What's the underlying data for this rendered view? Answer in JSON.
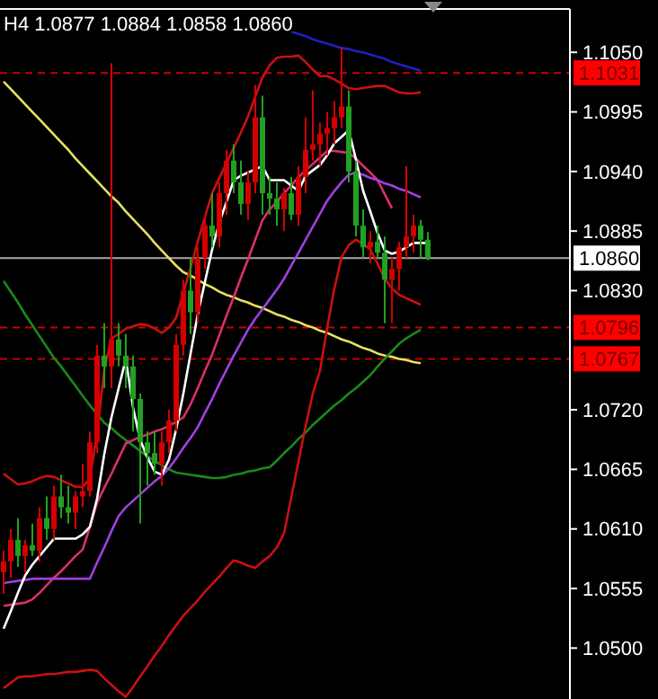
{
  "chart_data": {
    "type": "candlestick",
    "title": "H4 1.0877 1.0884 1.0858 1.0860",
    "categories": [
      null,
      null,
      null,
      null,
      null,
      null,
      null,
      null,
      null,
      null,
      null,
      null,
      null,
      null,
      null,
      null,
      null,
      null,
      null,
      null,
      null,
      null,
      null,
      null,
      null,
      null,
      null,
      null,
      null,
      null,
      null,
      null,
      null,
      null,
      null,
      null,
      null,
      null,
      null,
      null,
      null,
      null,
      null,
      null,
      null,
      null,
      null,
      null,
      null,
      null,
      null,
      null,
      null,
      null,
      null,
      null,
      null,
      null,
      null,
      null
    ],
    "ohlc": [
      [
        1.057,
        1.059,
        1.055,
        1.058
      ],
      [
        1.058,
        1.061,
        1.0565,
        1.06
      ],
      [
        1.06,
        1.062,
        1.0575,
        1.0585
      ],
      [
        1.0585,
        1.06,
        1.057,
        1.0595
      ],
      [
        1.0595,
        1.0615,
        1.0585,
        1.059
      ],
      [
        1.059,
        1.063,
        1.058,
        1.062
      ],
      [
        1.062,
        1.064,
        1.06,
        1.061
      ],
      [
        1.061,
        1.065,
        1.06,
        1.064
      ],
      [
        1.064,
        1.066,
        1.062,
        1.063
      ],
      [
        1.063,
        1.065,
        1.0615,
        1.0625
      ],
      [
        1.0625,
        1.0645,
        1.061,
        1.064
      ],
      [
        1.064,
        1.067,
        1.063,
        1.0645
      ],
      [
        1.0645,
        1.07,
        1.064,
        1.069
      ],
      [
        1.069,
        1.078,
        1.068,
        1.077
      ],
      [
        1.077,
        1.08,
        1.074,
        1.076
      ],
      [
        1.076,
        1.104,
        1.074,
        1.0785
      ],
      [
        1.0785,
        1.08,
        1.076,
        1.077
      ],
      [
        1.077,
        1.079,
        1.074,
        1.076
      ],
      [
        1.076,
        1.077,
        1.07,
        1.073
      ],
      [
        1.073,
        1.0735,
        1.0615,
        1.069
      ],
      [
        1.069,
        1.07,
        1.065,
        1.068
      ],
      [
        1.068,
        1.07,
        1.066,
        1.067
      ],
      [
        1.067,
        1.07,
        1.065,
        1.069
      ],
      [
        1.069,
        1.072,
        1.068,
        1.071
      ],
      [
        1.071,
        1.079,
        1.07,
        1.078
      ],
      [
        1.078,
        1.084,
        1.077,
        1.083
      ],
      [
        1.083,
        1.086,
        1.079,
        1.081
      ],
      [
        1.081,
        1.087,
        1.08,
        1.086
      ],
      [
        1.086,
        1.09,
        1.085,
        1.089
      ],
      [
        1.089,
        1.092,
        1.087,
        1.088
      ],
      [
        1.088,
        1.093,
        1.087,
        1.092
      ],
      [
        1.092,
        1.096,
        1.09,
        1.095
      ],
      [
        1.095,
        1.0965,
        1.092,
        1.093
      ],
      [
        1.093,
        1.095,
        1.09,
        1.091
      ],
      [
        1.091,
        1.094,
        1.0895,
        1.093
      ],
      [
        1.093,
        1.102,
        1.092,
        1.099
      ],
      [
        1.099,
        1.101,
        1.09,
        1.092
      ],
      [
        1.092,
        1.0935,
        1.09,
        1.0915
      ],
      [
        1.0915,
        1.093,
        1.089,
        1.0905
      ],
      [
        1.0905,
        1.0925,
        1.0885,
        1.092
      ],
      [
        1.092,
        1.0935,
        1.0895,
        1.09
      ],
      [
        1.09,
        1.0945,
        1.089,
        1.0935
      ],
      [
        1.0935,
        1.099,
        1.092,
        1.096
      ],
      [
        1.096,
        1.1015,
        1.095,
        1.0965
      ],
      [
        1.0965,
        1.0985,
        1.0945,
        1.0975
      ],
      [
        1.0975,
        1.0995,
        1.0955,
        1.098
      ],
      [
        1.098,
        1.1005,
        1.0965,
        1.099
      ],
      [
        1.099,
        1.1055,
        1.098,
        1.1
      ],
      [
        1.1,
        1.1015,
        1.093,
        1.094
      ],
      [
        1.094,
        1.095,
        1.088,
        1.089
      ],
      [
        1.089,
        1.0905,
        1.086,
        1.087
      ],
      [
        1.087,
        1.0885,
        1.0855,
        1.0875
      ],
      [
        1.0875,
        1.089,
        1.086,
        1.0865
      ],
      [
        1.0865,
        1.088,
        1.08,
        1.084
      ],
      [
        1.084,
        1.086,
        1.08,
        1.085
      ],
      [
        1.085,
        1.0875,
        1.083,
        1.087
      ],
      [
        1.087,
        1.0945,
        1.086,
        1.088
      ],
      [
        1.088,
        1.09,
        1.0865,
        1.089
      ],
      [
        1.089,
        1.0895,
        1.086,
        1.0877
      ],
      [
        1.0877,
        1.0884,
        1.0858,
        1.086
      ]
    ],
    "colors": [
      "#d40000",
      "#d40000",
      "#22a022",
      "#d40000",
      "#22a022",
      "#d40000",
      "#22a022",
      "#d40000",
      "#22a022",
      "#22a022",
      "#d40000",
      "#d40000",
      "#d40000",
      "#d40000",
      "#22a022",
      "#d40000",
      "#22a022",
      "#22a022",
      "#22a022",
      "#22a022",
      "#22a022",
      "#22a022",
      "#d40000",
      "#d40000",
      "#d40000",
      "#d40000",
      "#22a022",
      "#d40000",
      "#d40000",
      "#22a022",
      "#d40000",
      "#d40000",
      "#22a022",
      "#22a022",
      "#d40000",
      "#d40000",
      "#22a022",
      "#22a022",
      "#22a022",
      "#d40000",
      "#22a022",
      "#d40000",
      "#d40000",
      "#d40000",
      "#d40000",
      "#d40000",
      "#d40000",
      "#d40000",
      "#22a022",
      "#22a022",
      "#22a022",
      "#d40000",
      "#22a022",
      "#22a022",
      "#d40000",
      "#d40000",
      "#d40000",
      "#d40000",
      "#22a022",
      "#22a022"
    ],
    "series": [
      {
        "type": "line",
        "color": "#e8e060",
        "values": [
          1.1023,
          1.1016,
          1.1009,
          1.1002,
          1.0995,
          1.0988,
          1.0981,
          1.0974,
          1.0967,
          1.096,
          1.0952,
          1.0945,
          1.0938,
          1.0931,
          1.0924,
          1.0917,
          1.0911,
          1.0903,
          1.0896,
          1.0889,
          1.0882,
          1.0874,
          1.0867,
          1.086,
          1.0853,
          1.0847,
          1.0844,
          1.084,
          1.0836,
          1.0833,
          1.0829,
          1.0826,
          1.0824,
          1.0821,
          1.0819,
          1.0816,
          1.0814,
          1.0811,
          1.0808,
          1.0806,
          1.0803,
          1.0801,
          1.0798,
          1.0796,
          1.0793,
          1.0791,
          1.0788,
          1.0785,
          1.0783,
          1.078,
          1.0777,
          1.0775,
          1.0772,
          1.077,
          1.0769,
          1.0767,
          1.0766,
          1.0764,
          1.0763,
          null
        ]
      },
      {
        "type": "line",
        "color": "#1a8a1a",
        "values": [
          1.0839,
          1.0829,
          1.0819,
          1.0808,
          1.0798,
          1.0788,
          1.0778,
          1.0768,
          1.076,
          1.0751,
          1.0742,
          1.0733,
          1.0724,
          1.0716,
          1.0708,
          1.0703,
          1.0697,
          1.0692,
          1.0687,
          1.0682,
          1.0677,
          1.0673,
          1.0669,
          1.0665,
          1.0662,
          1.0661,
          1.066,
          1.0659,
          1.0658,
          1.0657,
          1.0657,
          1.0658,
          1.066,
          1.0661,
          1.0663,
          1.0664,
          1.0666,
          1.0667,
          1.0673,
          1.068,
          1.0686,
          1.0693,
          1.0699,
          1.0706,
          1.0712,
          1.0718,
          1.0724,
          1.0729,
          1.0735,
          1.074,
          1.0746,
          1.0752,
          1.076,
          1.0767,
          1.0774,
          1.0781,
          1.0786,
          1.079,
          1.0794,
          null
        ]
      },
      {
        "type": "line",
        "color": "#2020c0",
        "values": [
          null,
          null,
          null,
          null,
          null,
          null,
          null,
          null,
          null,
          null,
          null,
          null,
          null,
          null,
          null,
          null,
          null,
          null,
          null,
          null,
          null,
          null,
          null,
          null,
          null,
          null,
          null,
          null,
          null,
          null,
          null,
          null,
          null,
          null,
          null,
          null,
          null,
          null,
          null,
          null,
          1.1069,
          1.1067,
          1.1065,
          1.1062,
          1.106,
          1.1058,
          1.1056,
          1.1054,
          1.1053,
          1.1051,
          1.105,
          1.1048,
          1.1046,
          1.1044,
          1.1041,
          1.1039,
          1.1037,
          1.1035,
          1.1033,
          null
        ]
      },
      {
        "type": "line",
        "color": "#cc1010",
        "values": [
          1.0661,
          1.0656,
          1.0651,
          1.0652,
          1.0654,
          1.0657,
          1.0659,
          1.0658,
          1.0655,
          1.0652,
          1.0649,
          1.0649,
          1.0656,
          1.0698,
          1.0757,
          1.0786,
          1.079,
          1.0795,
          1.0797,
          1.0799,
          1.0798,
          1.0795,
          1.0791,
          1.0796,
          1.0805,
          1.0828,
          1.0851,
          1.0875,
          1.0898,
          1.092,
          1.0934,
          1.0948,
          1.0962,
          1.0976,
          1.0991,
          1.1009,
          1.1027,
          1.1038,
          1.1045,
          1.1046,
          1.1046,
          1.1047,
          1.1041,
          1.1034,
          1.1028,
          1.1028,
          1.1025,
          1.1021,
          1.1017,
          1.1016,
          1.1017,
          1.1018,
          1.1019,
          1.1019,
          1.1016,
          1.1013,
          1.1012,
          1.1012,
          1.1013,
          null
        ]
      },
      {
        "type": "line",
        "color": "#cc1010",
        "values": [
          1.0463,
          1.0468,
          1.0473,
          1.0474,
          1.0474,
          1.0475,
          1.0476,
          1.0476,
          1.0477,
          1.0478,
          1.0478,
          1.0479,
          1.048,
          1.0479,
          1.0472,
          1.0466,
          1.046,
          1.0455,
          1.0464,
          1.0474,
          1.0483,
          1.0493,
          1.0502,
          1.0512,
          1.0521,
          1.053,
          1.0537,
          1.0544,
          1.0552,
          1.0559,
          1.0566,
          1.0574,
          1.0581,
          1.0579,
          1.0576,
          1.0574,
          1.058,
          1.0585,
          1.0593,
          1.0606,
          1.0639,
          1.0672,
          1.0705,
          1.0735,
          1.0756,
          1.0796,
          1.0832,
          1.0861,
          1.0872,
          1.0877,
          1.0873,
          1.0868,
          1.0855,
          1.0841,
          1.0832,
          1.0826,
          1.0823,
          1.082,
          1.0817,
          null
        ]
      },
      {
        "type": "line",
        "color": "#d8306a",
        "values": [
          1.0539,
          1.054,
          1.0541,
          1.0542,
          1.0545,
          1.0551,
          1.0558,
          1.0565,
          1.0571,
          1.0578,
          1.0585,
          1.0591,
          1.0612,
          1.0634,
          1.0648,
          1.0661,
          1.0675,
          1.0689,
          1.0692,
          1.0695,
          1.0697,
          1.07,
          1.0702,
          1.0705,
          1.0709,
          1.0713,
          1.0725,
          1.074,
          1.0756,
          1.0771,
          1.0789,
          1.0807,
          1.0824,
          1.0842,
          1.0859,
          1.0877,
          1.0895,
          1.0905,
          1.0912,
          1.092,
          1.0927,
          1.0935,
          1.0941,
          1.0947,
          1.0953,
          1.0959,
          1.0959,
          1.0958,
          1.0957,
          1.0952,
          1.0945,
          1.0939,
          1.0932,
          1.0919,
          1.0906,
          null,
          null,
          null,
          null,
          null
        ]
      },
      {
        "type": "line",
        "color": "#a040e0",
        "values": [
          1.056,
          1.0561,
          1.0562,
          1.0563,
          1.0564,
          1.0564,
          1.0564,
          1.0564,
          1.0564,
          1.0564,
          1.0564,
          1.0564,
          1.0564,
          1.0579,
          1.0593,
          1.0608,
          1.0622,
          1.063,
          1.0636,
          1.0642,
          1.0648,
          1.0654,
          1.0659,
          1.0666,
          1.0675,
          1.0685,
          1.0694,
          1.0704,
          1.0717,
          1.073,
          1.0744,
          1.0757,
          1.077,
          1.0782,
          1.0794,
          1.0804,
          1.0813,
          1.0822,
          1.0831,
          1.0841,
          1.0853,
          1.0865,
          1.0877,
          1.0889,
          1.0901,
          1.0913,
          1.0922,
          1.093,
          1.0937,
          1.0939,
          1.0937,
          1.0934,
          1.0932,
          1.0929,
          1.0927,
          1.0924,
          1.0922,
          1.0919,
          1.0916,
          null
        ]
      },
      {
        "type": "line",
        "color": "#ffffff",
        "values": [
          1.0518,
          1.0534,
          1.0551,
          1.0567,
          1.0577,
          1.0585,
          1.0593,
          1.0601,
          1.0601,
          1.0601,
          1.0601,
          1.0605,
          1.0612,
          1.0638,
          1.0679,
          1.0713,
          1.074,
          1.0767,
          1.0722,
          1.0692,
          1.0676,
          1.0663,
          1.066,
          1.0674,
          1.0702,
          1.0735,
          1.0772,
          1.0808,
          1.0838,
          1.0868,
          1.0893,
          1.0912,
          1.0932,
          1.0936,
          1.0939,
          1.0942,
          1.0945,
          1.0932,
          1.0932,
          1.0932,
          1.0927,
          1.0922,
          1.0936,
          1.0941,
          1.0946,
          1.0955,
          1.0966,
          1.0972,
          1.0978,
          1.0951,
          1.0922,
          1.0903,
          1.0883,
          1.0867,
          1.0864,
          1.0866,
          1.087,
          1.0874,
          1.0874,
          1.0874
        ]
      }
    ],
    "ylim": [
      1.0453,
      1.109
    ],
    "yticks": [
      {
        "value": 1.105,
        "label": "1.1050"
      },
      {
        "value": 1.0995,
        "label": "1.0995"
      },
      {
        "value": 1.094,
        "label": "1.0940"
      },
      {
        "value": 1.0885,
        "label": "1.0885"
      },
      {
        "value": 1.083,
        "label": "1.0830"
      },
      {
        "value": 1.072,
        "label": "1.0720"
      },
      {
        "value": 1.0665,
        "label": "1.0665"
      },
      {
        "value": 1.061,
        "label": "1.0610"
      },
      {
        "value": 1.0555,
        "label": "1.0555"
      },
      {
        "value": 1.05,
        "label": "1.0500"
      }
    ],
    "tick_labels": "y",
    "ref_lines": [
      {
        "axis": "y",
        "value": 1.1031,
        "label": "1.1031",
        "color": "#cc0000",
        "line_style": "dashed"
      },
      {
        "axis": "y",
        "value": 1.0796,
        "label": "1.0796",
        "color": "#cc0000",
        "line_style": "dashed"
      },
      {
        "axis": "y",
        "value": 1.0767,
        "label": "1.0767",
        "color": "#cc0000",
        "line_style": "dashed"
      },
      {
        "axis": "y",
        "value": 1.086,
        "label": "1.0860",
        "color": "#a8a8a8",
        "line_style": "solid"
      }
    ]
  }
}
